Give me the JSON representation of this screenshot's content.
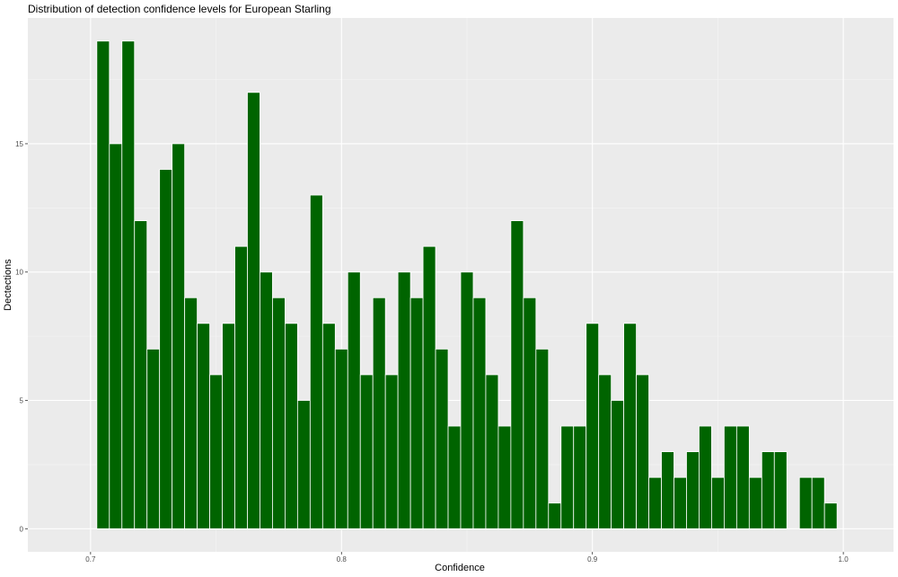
{
  "chart_data": {
    "type": "bar",
    "title": "Distribution of detection confidence levels for European Starling",
    "xlabel": "Confidence",
    "ylabel": "Dectections",
    "xlim": [
      0.675,
      1.02
    ],
    "ylim": [
      -0.9,
      19.9
    ],
    "x_ticks": [
      0.7,
      0.8,
      0.9,
      1.0
    ],
    "x_tick_labels": [
      "0.7",
      "0.8",
      "0.9",
      "1.0"
    ],
    "y_ticks": [
      0,
      5,
      10,
      15
    ],
    "y_tick_labels": [
      "0",
      "5",
      "10",
      "15"
    ],
    "bin_width": 0.005,
    "bin_start": 0.7025,
    "values": [
      19,
      15,
      19,
      12,
      7,
      14,
      15,
      9,
      8,
      6,
      8,
      11,
      17,
      10,
      9,
      8,
      5,
      13,
      8,
      7,
      10,
      6,
      9,
      6,
      10,
      9,
      11,
      7,
      4,
      10,
      9,
      6,
      4,
      12,
      9,
      7,
      1,
      4,
      4,
      8,
      6,
      5,
      8,
      6,
      2,
      3,
      2,
      3,
      4,
      2,
      4,
      4,
      2,
      3,
      3,
      0,
      2,
      2,
      1
    ],
    "colors": {
      "bar_fill": "#006400",
      "bar_stroke": "#ffffff",
      "panel": "#ebebeb",
      "grid": "#ffffff"
    },
    "grid": true,
    "legend": "none"
  }
}
